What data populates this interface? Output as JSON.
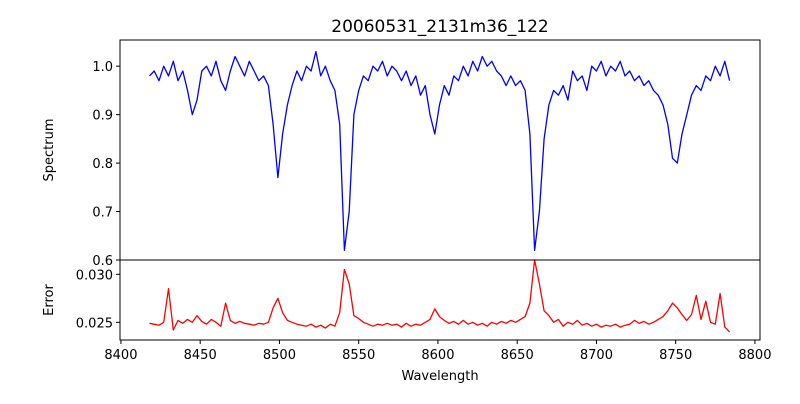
{
  "chart_data": [
    {
      "type": "line",
      "title": "20060531_2131m36_122",
      "xlabel": "",
      "ylabel": "Spectrum",
      "xlim": [
        8399.4,
        8803.2
      ],
      "ylim": [
        0.6,
        1.054
      ],
      "yticks": [
        0.6,
        0.7,
        0.8,
        0.9,
        1.0
      ],
      "ytick_labels": [
        "0.6",
        "0.7",
        "0.8",
        "0.9",
        "1.0"
      ],
      "grid": false,
      "series": [
        {
          "name": "Spectrum",
          "color": "#0000ff",
          "x_start": 8418,
          "x_step": 3,
          "values": [
            0.98,
            0.99,
            0.97,
            1.0,
            0.98,
            1.01,
            0.97,
            0.99,
            0.95,
            0.9,
            0.93,
            0.99,
            1.0,
            0.98,
            1.01,
            0.97,
            0.95,
            0.99,
            1.02,
            1.0,
            0.98,
            1.01,
            0.99,
            0.97,
            0.98,
            0.96,
            0.88,
            0.77,
            0.86,
            0.92,
            0.96,
            0.99,
            0.97,
            1.0,
            0.99,
            1.03,
            0.98,
            1.0,
            0.97,
            0.95,
            0.88,
            0.62,
            0.7,
            0.9,
            0.95,
            0.98,
            0.97,
            1.0,
            0.99,
            1.01,
            0.98,
            1.0,
            0.99,
            0.97,
            0.99,
            0.96,
            0.98,
            0.94,
            0.96,
            0.9,
            0.86,
            0.92,
            0.96,
            0.94,
            0.98,
            0.97,
            1.0,
            0.98,
            1.01,
            0.99,
            1.02,
            1.0,
            1.01,
            0.99,
            0.98,
            0.96,
            0.98,
            0.96,
            0.97,
            0.95,
            0.86,
            0.62,
            0.7,
            0.85,
            0.92,
            0.95,
            0.94,
            0.96,
            0.93,
            0.99,
            0.97,
            0.98,
            0.95,
            1.0,
            0.99,
            1.01,
            0.98,
            1.0,
            0.99,
            1.01,
            0.98,
            0.99,
            0.97,
            0.98,
            0.96,
            0.97,
            0.95,
            0.94,
            0.92,
            0.88,
            0.81,
            0.8,
            0.86,
            0.9,
            0.94,
            0.96,
            0.95,
            0.98,
            0.97,
            1.0,
            0.98,
            1.01,
            0.97
          ]
        }
      ]
    },
    {
      "type": "line",
      "xlabel": "Wavelength",
      "ylabel": "Error",
      "xlim": [
        8399.4,
        8803.2
      ],
      "ylim": [
        0.02316,
        0.03149
      ],
      "xticks": [
        8400,
        8450,
        8500,
        8550,
        8600,
        8650,
        8700,
        8750,
        8800
      ],
      "xtick_labels": [
        "8400",
        "8450",
        "8500",
        "8550",
        "8600",
        "8650",
        "8700",
        "8750",
        "8800"
      ],
      "yticks": [
        0.025,
        0.03
      ],
      "ytick_labels": [
        "0.025",
        "0.030"
      ],
      "grid": false,
      "series": [
        {
          "name": "Error",
          "color": "#ff0000",
          "x_start": 8418,
          "x_step": 3,
          "values": [
            0.0249,
            0.0248,
            0.0247,
            0.025,
            0.0285,
            0.0242,
            0.0252,
            0.0249,
            0.0253,
            0.025,
            0.0257,
            0.0251,
            0.0248,
            0.0253,
            0.025,
            0.0246,
            0.027,
            0.0252,
            0.0249,
            0.0251,
            0.0249,
            0.0248,
            0.0247,
            0.0249,
            0.0248,
            0.025,
            0.0265,
            0.0275,
            0.026,
            0.0252,
            0.025,
            0.0248,
            0.0247,
            0.0246,
            0.0248,
            0.0245,
            0.0247,
            0.0244,
            0.0248,
            0.0246,
            0.026,
            0.0305,
            0.029,
            0.0257,
            0.0254,
            0.025,
            0.0248,
            0.0246,
            0.0248,
            0.0247,
            0.0249,
            0.0247,
            0.0248,
            0.0245,
            0.0249,
            0.0246,
            0.0248,
            0.0247,
            0.025,
            0.0253,
            0.0264,
            0.0256,
            0.0252,
            0.0249,
            0.0251,
            0.0248,
            0.0252,
            0.0248,
            0.025,
            0.0247,
            0.0249,
            0.0246,
            0.025,
            0.0248,
            0.0251,
            0.0249,
            0.0252,
            0.025,
            0.0253,
            0.0256,
            0.027,
            0.0315,
            0.029,
            0.0262,
            0.0257,
            0.025,
            0.0253,
            0.0246,
            0.025,
            0.0248,
            0.0252,
            0.0247,
            0.0249,
            0.0246,
            0.0248,
            0.0245,
            0.0247,
            0.0246,
            0.0248,
            0.0245,
            0.0247,
            0.0248,
            0.0252,
            0.0249,
            0.0251,
            0.0248,
            0.025,
            0.0253,
            0.0256,
            0.0262,
            0.027,
            0.0265,
            0.0258,
            0.0252,
            0.0258,
            0.0278,
            0.0253,
            0.0272,
            0.025,
            0.0248,
            0.028,
            0.0245,
            0.024
          ]
        }
      ]
    }
  ]
}
